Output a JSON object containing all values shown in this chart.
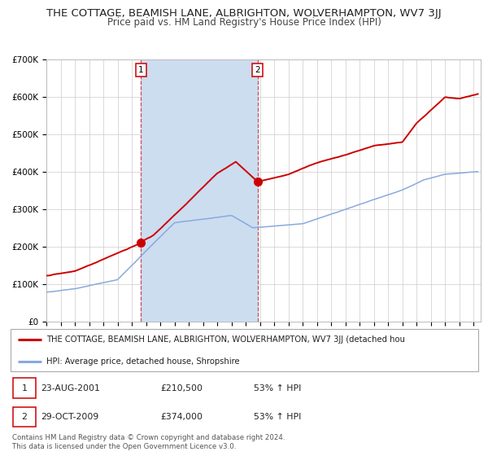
{
  "title": "THE COTTAGE, BEAMISH LANE, ALBRIGHTON, WOLVERHAMPTON, WV7 3JJ",
  "subtitle": "Price paid vs. HM Land Registry's House Price Index (HPI)",
  "title_fontsize": 9.5,
  "subtitle_fontsize": 8.5,
  "ylim": [
    0,
    700000
  ],
  "yticks": [
    0,
    100000,
    200000,
    300000,
    400000,
    500000,
    600000,
    700000
  ],
  "ytick_labels": [
    "£0",
    "£100K",
    "£200K",
    "£300K",
    "£400K",
    "£500K",
    "£600K",
    "£700K"
  ],
  "xlim_start": 1995.0,
  "xlim_end": 2025.5,
  "xticks": [
    1995,
    1996,
    1997,
    1998,
    1999,
    2000,
    2001,
    2002,
    2003,
    2004,
    2005,
    2006,
    2007,
    2008,
    2009,
    2010,
    2011,
    2012,
    2013,
    2014,
    2015,
    2016,
    2017,
    2018,
    2019,
    2020,
    2021,
    2022,
    2023,
    2024,
    2025
  ],
  "red_line_color": "#cc0000",
  "blue_line_color": "#88aadd",
  "marker_color": "#cc0000",
  "sale1_x": 2001.645,
  "sale1_y": 210500,
  "sale2_x": 2009.831,
  "sale2_y": 374000,
  "shade_color": "#ccddf0",
  "legend_red_label": "THE COTTAGE, BEAMISH LANE, ALBRIGHTON, WOLVERHAMPTON, WV7 3JJ (detached hou",
  "legend_blue_label": "HPI: Average price, detached house, Shropshire",
  "annot1_label": "1",
  "annot2_label": "2",
  "footnote": "Contains HM Land Registry data © Crown copyright and database right 2024.\nThis data is licensed under the Open Government Licence v3.0.",
  "background_color": "#ffffff",
  "grid_color": "#cccccc"
}
